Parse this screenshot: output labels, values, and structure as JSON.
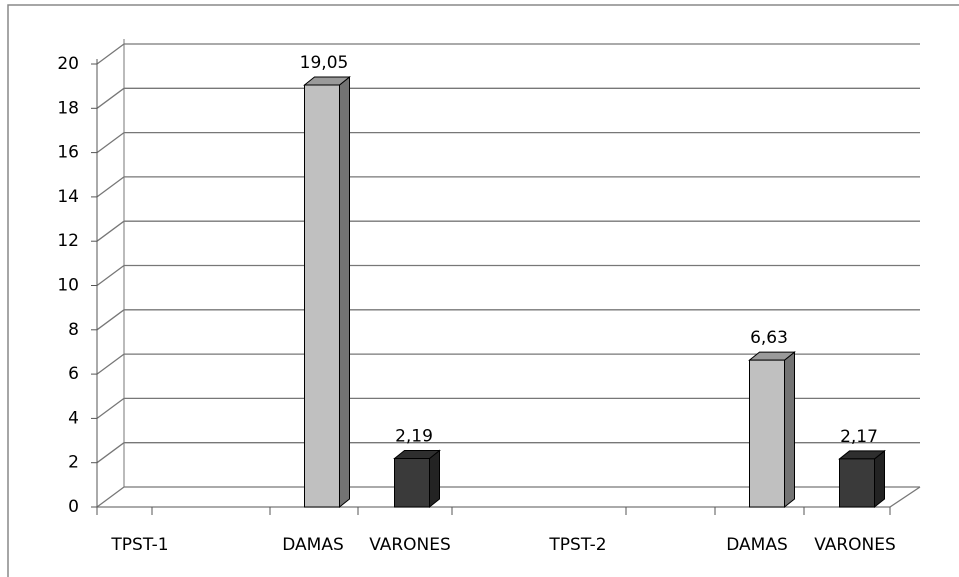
{
  "chart_data": {
    "type": "bar3d",
    "categories": [
      "TPST-1",
      "DAMAS",
      "VARONES",
      "TPST-2",
      "DAMAS",
      "VARONES"
    ],
    "values": [
      null,
      19.05,
      2.19,
      null,
      6.63,
      2.17
    ],
    "value_labels": [
      null,
      "19,05",
      "2,19",
      null,
      "6,63",
      "2,17"
    ],
    "colors": [
      null,
      "#c0c0c0",
      "#3a3a3a",
      null,
      "#c0c0c0",
      "#3a3a3a"
    ],
    "ylim": [
      0,
      20
    ],
    "yticks": [
      0,
      2,
      4,
      6,
      8,
      10,
      12,
      14,
      16,
      18,
      20
    ],
    "grid": true
  }
}
